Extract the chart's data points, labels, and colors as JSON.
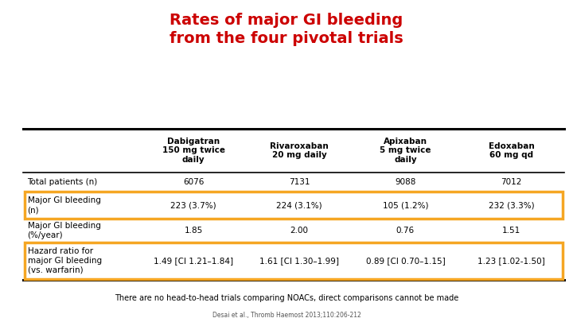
{
  "title": "Rates of major GI bleeding\nfrom the four pivotal trials",
  "title_color": "#cc0000",
  "col_headers": [
    "Dabigatran\n150 mg twice\ndaily",
    "Rivaroxaban\n20 mg daily",
    "Apixaban\n5 mg twice\ndaily",
    "Edoxaban\n60 mg qd"
  ],
  "row_labels": [
    "Total patients (n)",
    "Major GI bleeding\n(n)",
    "Major GI bleeding\n(%/year)",
    "Hazard ratio for\nmajor GI bleeding\n(vs. warfarin)"
  ],
  "cell_data": [
    [
      "6076",
      "7131",
      "9088",
      "7012"
    ],
    [
      "223 (3.7%)",
      "224 (3.1%)",
      "105 (1.2%)",
      "232 (3.3%)"
    ],
    [
      "1.85",
      "2.00",
      "0.76",
      "1.51"
    ],
    [
      "1.49 [CI 1.21–1.84]",
      "1.61 [CI 1.30–1.99]",
      "0.89 [CI 0.70–1.15]",
      "1.23 [1.02-1.50]"
    ]
  ],
  "highlighted_rows": [
    1,
    3
  ],
  "highlight_color": "#f5a623",
  "footer_text": "There are no head-to-head trials comparing NOACs, direct comparisons cannot be made",
  "citation_text": "Desai et al., Thromb Haemost 2013;110:206-212",
  "background_color": "#ffffff",
  "top_rule_color": "#000000",
  "header_rule_color": "#000000",
  "bottom_rule_color": "#000000",
  "title_fontsize": 14,
  "header_fontsize": 7.5,
  "cell_fontsize": 7.5,
  "footer_fontsize": 7.0,
  "citation_fontsize": 5.5
}
